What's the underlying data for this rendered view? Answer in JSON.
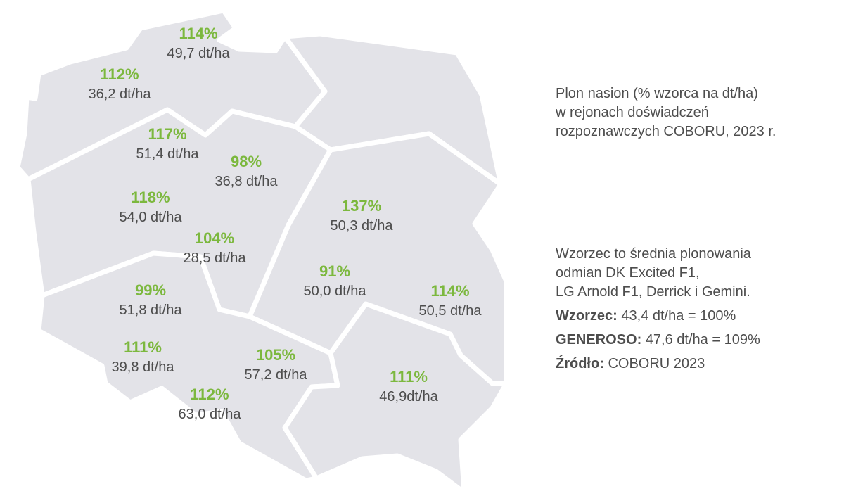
{
  "title": {
    "lines": [
      "Plon nasion (% wzorca na dt/ha)",
      "w rejonach doświadczeń",
      "rozpoznawczych COBORU, 2023 r."
    ]
  },
  "note": {
    "lines": [
      "Wzorzec to średnia plonowania",
      "odmian DK Excited F1,",
      "LG Arnold F1, Derrick i Gemini."
    ],
    "facts": [
      {
        "label": "Wzorzec:",
        "value": "43,4 dt/ha = 100%"
      },
      {
        "label": "GENEROSO:",
        "value": "47,6 dt/ha = 109%"
      },
      {
        "label": "Źródło:",
        "value": "COBORU 2023"
      }
    ]
  },
  "regions": [
    {
      "pct": "114%",
      "yield": "49,7 dt/ha"
    },
    {
      "pct": "112%",
      "yield": "36,2 dt/ha"
    },
    {
      "pct": "117%",
      "yield": "51,4 dt/ha"
    },
    {
      "pct": "98%",
      "yield": "36,8 dt/ha"
    },
    {
      "pct": "118%",
      "yield": "54,0 dt/ha"
    },
    {
      "pct": "104%",
      "yield": "28,5 dt/ha"
    },
    {
      "pct": "137%",
      "yield": "50,3 dt/ha"
    },
    {
      "pct": "91%",
      "yield": "50,0 dt/ha"
    },
    {
      "pct": "114%",
      "yield": "50,5 dt/ha"
    },
    {
      "pct": "99%",
      "yield": "51,8 dt/ha"
    },
    {
      "pct": "111%",
      "yield": "39,8 dt/ha"
    },
    {
      "pct": "105%",
      "yield": "57,2 dt/ha"
    },
    {
      "pct": "112%",
      "yield": "63,0 dt/ha"
    },
    {
      "pct": "111%",
      "yield": "46,9dt/ha"
    }
  ],
  "colors": {
    "region_fill": "#e3e3e8",
    "border": "#ffffff",
    "percent": "#7cb83e",
    "text": "#4d4d4d"
  }
}
